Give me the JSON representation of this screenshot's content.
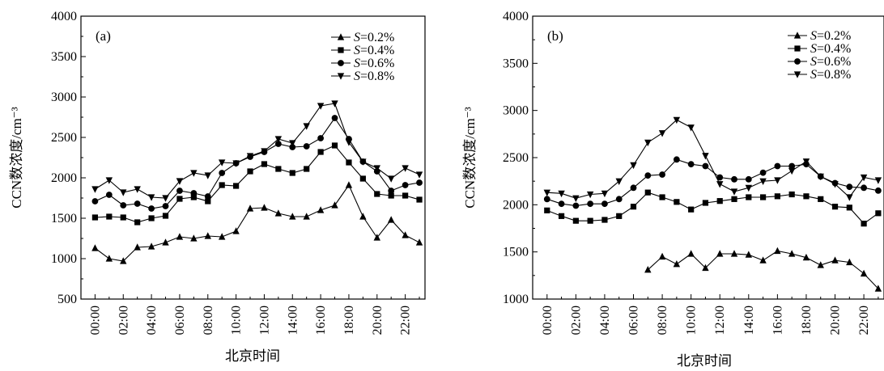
{
  "colors": {
    "ink": "#000000",
    "background": "#ffffff"
  },
  "chart_data": [
    {
      "type": "line",
      "panel_label": "(a)",
      "ylabel": "CCN数浓度/cm⁻³",
      "xlabel": "北京时间",
      "ylim": [
        500,
        4000
      ],
      "yticks": [
        "500",
        "1000",
        "1500",
        "2000",
        "2500",
        "3000",
        "3500",
        "4000"
      ],
      "xlim": [
        -1,
        23.4
      ],
      "xticks": [
        "00:00",
        "02:00",
        "04:00",
        "06:00",
        "08:00",
        "10:00",
        "12:00",
        "14:00",
        "16:00",
        "18:00",
        "20:00",
        "22:00"
      ],
      "grid": false,
      "legend_position": "top-right",
      "x": [
        0,
        1,
        2,
        3,
        4,
        5,
        6,
        7,
        8,
        9,
        10,
        11,
        12,
        13,
        14,
        15,
        16,
        17,
        18,
        19,
        20,
        21,
        22,
        23
      ],
      "series": [
        {
          "name": "S=0.2%",
          "legend_italic": "S",
          "legend_rest": "=0.2%",
          "marker": "triangle-up",
          "values": [
            1130,
            1000,
            970,
            1140,
            1150,
            1200,
            1270,
            1250,
            1280,
            1270,
            1340,
            1620,
            1630,
            1560,
            1520,
            1520,
            1600,
            1660,
            1910,
            1520,
            1260,
            1480,
            1290,
            1200
          ]
        },
        {
          "name": "S=0.4%",
          "legend_italic": "S",
          "legend_rest": "=0.4%",
          "marker": "square",
          "values": [
            1510,
            1520,
            1510,
            1450,
            1500,
            1530,
            1740,
            1760,
            1710,
            1910,
            1900,
            2080,
            2170,
            2110,
            2060,
            2110,
            2320,
            2400,
            2190,
            1990,
            1800,
            1780,
            1780,
            1730
          ]
        },
        {
          "name": "S=0.6%",
          "legend_italic": "S",
          "legend_rest": "=0.6%",
          "marker": "circle",
          "values": [
            1710,
            1790,
            1660,
            1680,
            1620,
            1650,
            1840,
            1810,
            1770,
            2060,
            2180,
            2260,
            2320,
            2420,
            2380,
            2390,
            2490,
            2740,
            2480,
            2200,
            2080,
            1840,
            1910,
            1940
          ]
        },
        {
          "name": "S=0.8%",
          "legend_italic": "S",
          "legend_rest": "=0.8%",
          "marker": "triangle-down",
          "values": [
            1860,
            1970,
            1820,
            1860,
            1760,
            1750,
            1960,
            2060,
            2030,
            2190,
            2180,
            2270,
            2330,
            2480,
            2430,
            2640,
            2890,
            2920,
            2440,
            2200,
            2120,
            1990,
            2120,
            2040
          ]
        }
      ]
    },
    {
      "type": "line",
      "panel_label": "(b)",
      "ylabel": "CCN数浓度/cm⁻³",
      "xlabel": "北京时间",
      "ylim": [
        1000,
        4000
      ],
      "yticks": [
        "1000",
        "1500",
        "2000",
        "2500",
        "3000",
        "3500",
        "4000"
      ],
      "xlim": [
        -1,
        23.4
      ],
      "xticks": [
        "00:00",
        "02:00",
        "04:00",
        "06:00",
        "08:00",
        "10:00",
        "12:00",
        "14:00",
        "16:00",
        "18:00",
        "20:00",
        "22:00"
      ],
      "grid": false,
      "legend_position": "top-right",
      "x": [
        0,
        1,
        2,
        3,
        4,
        5,
        6,
        7,
        8,
        9,
        10,
        11,
        12,
        13,
        14,
        15,
        16,
        17,
        18,
        19,
        20,
        21,
        22,
        23
      ],
      "series": [
        {
          "name": "S=0.2%",
          "legend_italic": "S",
          "legend_rest": "=0.2%",
          "marker": "triangle-up",
          "values": [
            null,
            null,
            null,
            null,
            null,
            null,
            null,
            1310,
            1450,
            1370,
            1480,
            1330,
            1480,
            1480,
            1470,
            1410,
            1510,
            1480,
            1440,
            1360,
            1410,
            1390,
            1270,
            1110
          ]
        },
        {
          "name": "S=0.4%",
          "legend_italic": "S",
          "legend_rest": "=0.4%",
          "marker": "square",
          "values": [
            1940,
            1880,
            1830,
            1830,
            1840,
            1880,
            1980,
            2130,
            2080,
            2030,
            1950,
            2020,
            2040,
            2060,
            2080,
            2080,
            2090,
            2110,
            2090,
            2060,
            1980,
            1970,
            1800,
            1910
          ]
        },
        {
          "name": "S=0.6%",
          "legend_italic": "S",
          "legend_rest": "=0.6%",
          "marker": "circle",
          "values": [
            2060,
            2010,
            1990,
            2010,
            2010,
            2060,
            2180,
            2310,
            2320,
            2480,
            2430,
            2410,
            2290,
            2270,
            2270,
            2340,
            2410,
            2410,
            2430,
            2300,
            2230,
            2190,
            2180,
            2150
          ]
        },
        {
          "name": "S=0.8%",
          "legend_italic": "S",
          "legend_rest": "=0.8%",
          "marker": "triangle-down",
          "values": [
            2130,
            2120,
            2070,
            2110,
            2120,
            2250,
            2420,
            2660,
            2760,
            2900,
            2820,
            2520,
            2220,
            2140,
            2180,
            2250,
            2260,
            2360,
            2460,
            2300,
            2220,
            2080,
            2290,
            2260
          ]
        }
      ]
    }
  ]
}
